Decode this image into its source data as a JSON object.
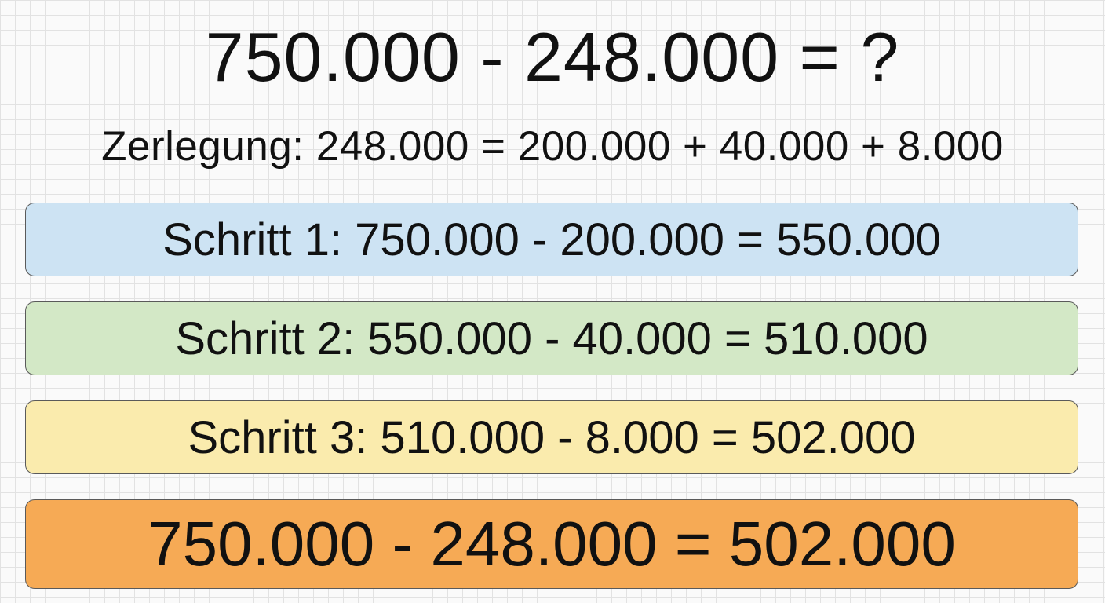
{
  "problem": "750.000 - 248.000 = ?",
  "decomposition": "Zerlegung: 248.000 = 200.000 + 40.000 + 8.000",
  "steps": [
    {
      "text": "Schritt 1: 750.000 - 200.000 = 550.000",
      "color": "#cde3f3"
    },
    {
      "text": "Schritt 2: 550.000 - 40.000 = 510.000",
      "color": "#d3e8c6"
    },
    {
      "text": "Schritt 3: 510.000 - 8.000 = 502.000",
      "color": "#faebad"
    }
  ],
  "result": {
    "text": "750.000 - 248.000 = 502.000",
    "color": "#f6aa55"
  }
}
